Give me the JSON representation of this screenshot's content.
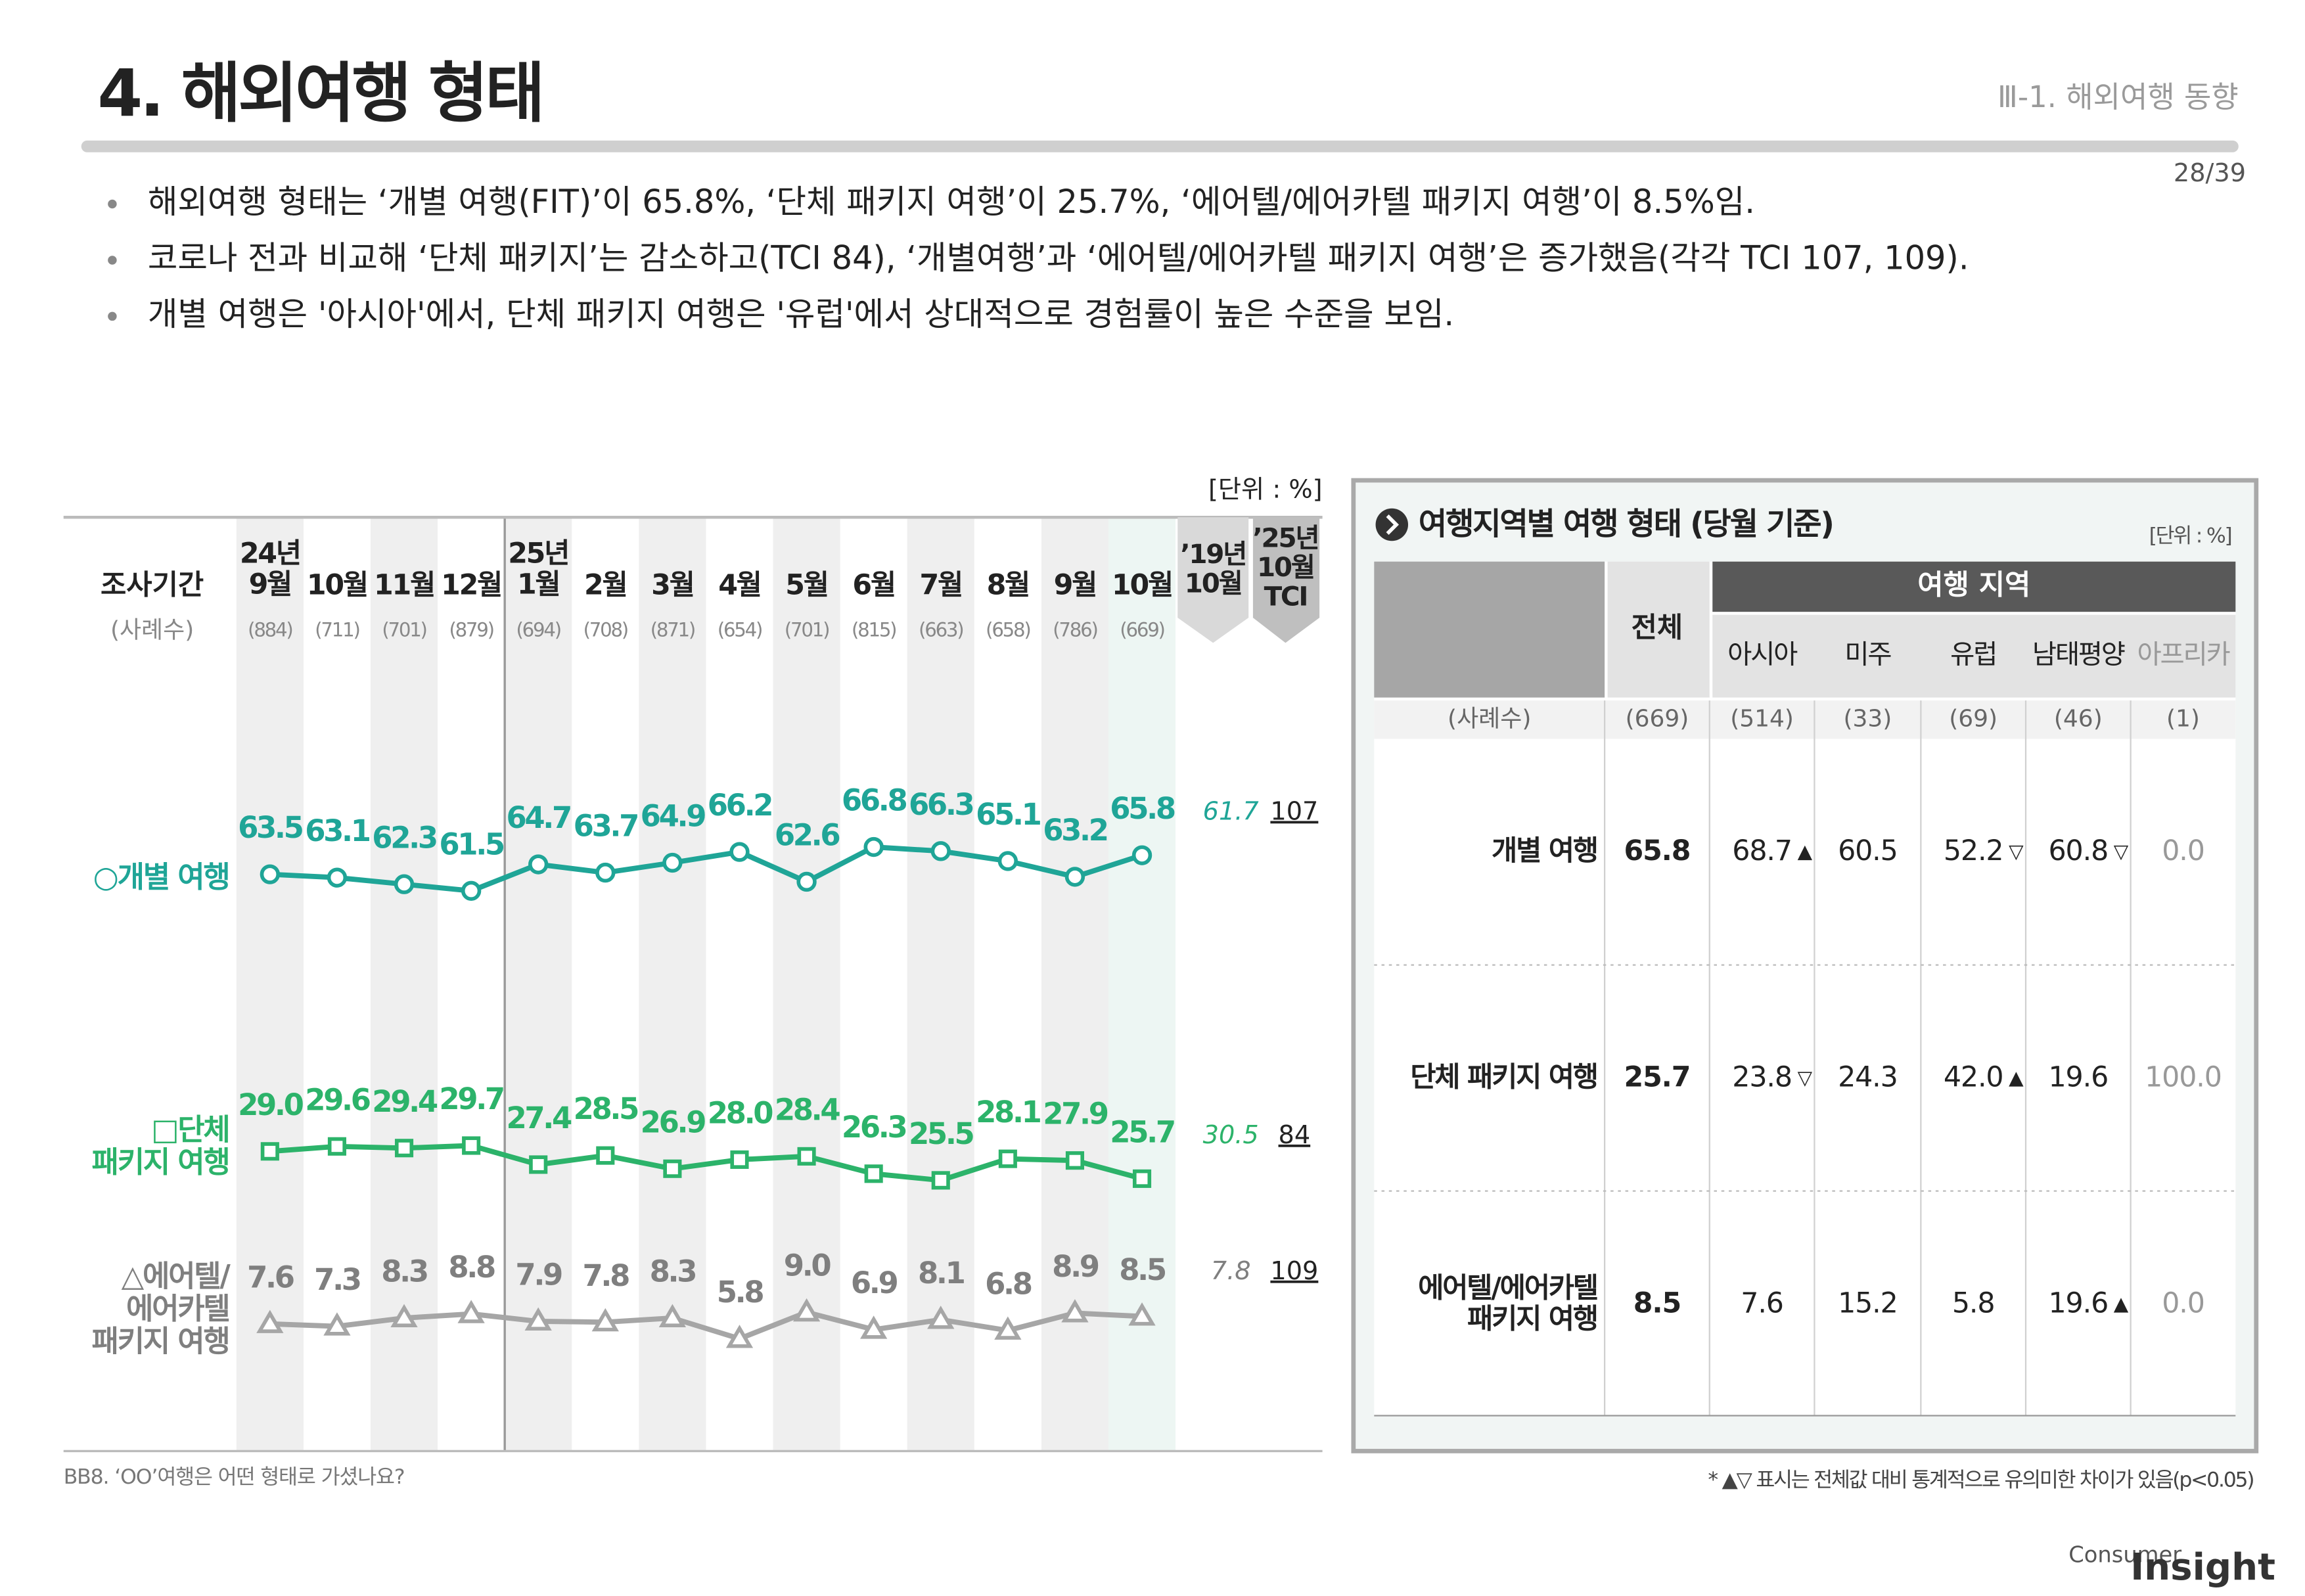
{
  "header": {
    "title": "4. 해외여행 형태",
    "section": "Ⅲ-1. 해외여행 동향",
    "page": "28/39"
  },
  "bullets": [
    "해외여행 형태는 ‘개별 여행(FIT)’이 65.8%, ‘단체 패키지 여행’이 25.7%, ‘에어텔/에어카텔 패키지 여행’이 8.5%임.",
    "코로나 전과 비교해 ‘단체 패키지’는 감소하고(TCI 84), ‘개별여행’과 ‘에어텔/에어카텔 패키지 여행’은 증가했음(각각 TCI 107, 109).",
    "개별 여행은 '아시아'에서, 단체 패키지 여행은 '유럽'에서 상대적으로 경험률이 높은 수준을 보임."
  ],
  "chart_data": {
    "type": "line",
    "unit": "[단위 : %]",
    "period_label": "조사기간",
    "sample_label": "(사례수)",
    "categories": [
      "24년\n9월",
      "10월",
      "11월",
      "12월",
      "25년\n1월",
      "2월",
      "3월",
      "4월",
      "5월",
      "6월",
      "7월",
      "8월",
      "9월",
      "10월"
    ],
    "sample_sizes": [
      "(884)",
      "(711)",
      "(701)",
      "(879)",
      "(694)",
      "(708)",
      "(871)",
      "(654)",
      "(701)",
      "(815)",
      "(663)",
      "(658)",
      "(786)",
      "(669)"
    ],
    "series": [
      {
        "name": "○개별 여행",
        "color": "#1fa597",
        "marker": "circle",
        "values": [
          63.5,
          63.1,
          62.3,
          61.5,
          64.7,
          63.7,
          64.9,
          66.2,
          62.6,
          66.8,
          66.3,
          65.1,
          63.2,
          65.8
        ]
      },
      {
        "name": "□단체\n패키지 여행",
        "color": "#2cb36a",
        "marker": "square",
        "values": [
          29.0,
          29.6,
          29.4,
          29.7,
          27.4,
          28.5,
          26.9,
          28.0,
          28.4,
          26.3,
          25.5,
          28.1,
          27.9,
          25.7
        ],
        "value_labels": [
          "29.0",
          "29.6",
          "29.4",
          "29.7",
          "27.4",
          "28.5",
          "26.9",
          "28.0",
          "28.4",
          "26.3",
          "25.5",
          "28.1",
          "27.9",
          "25.7"
        ]
      },
      {
        "name": "△에어텔/\n에어카텔\n패키지 여행",
        "color": "#a6a6a6",
        "label_color": "#7f7f7f",
        "marker": "triangle",
        "values": [
          7.6,
          7.3,
          8.3,
          8.8,
          7.9,
          7.8,
          8.3,
          5.8,
          9.0,
          6.9,
          8.1,
          6.8,
          8.9,
          8.5
        ],
        "value_labels": [
          "7.6",
          "7.3",
          "8.3",
          "8.8",
          "7.9",
          "7.8",
          "8.3",
          "5.8",
          "9.0",
          "6.9",
          "8.1",
          "6.8",
          "8.9",
          "8.5"
        ]
      }
    ],
    "comparison": {
      "header": "’19년\n10월",
      "values": [
        61.7,
        30.5,
        7.8
      ]
    },
    "tci": {
      "header": "’25년\n10월\nTCI",
      "values": [
        107,
        84,
        109
      ]
    },
    "source": "BB8. ‘OO’여행은 어떤 형태로 가셨나요?"
  },
  "table": {
    "title": "여행지역별 여행 형태 (당월 기준)",
    "unit": "[단위 : %]",
    "total_header": "전체",
    "group_header": "여행 지역",
    "regions": [
      "아시아",
      "미주",
      "유럽",
      "남태평양",
      "아프리카"
    ],
    "sample_label": "(사례수)",
    "sample_sizes": [
      "(669)",
      "(514)",
      "(33)",
      "(69)",
      "(46)",
      "(1)"
    ],
    "rows": [
      {
        "label": "개별 여행",
        "cells": [
          "65.8",
          "68.7",
          "60.5",
          "52.2",
          "60.8",
          "0.0"
        ],
        "marks": [
          null,
          "▲",
          null,
          "▽",
          "▽",
          null
        ]
      },
      {
        "label": "단체 패키지 여행",
        "cells": [
          "25.7",
          "23.8",
          "24.3",
          "42.0",
          "19.6",
          "100.0"
        ],
        "marks": [
          null,
          "▽",
          null,
          "▲",
          null,
          null
        ]
      },
      {
        "label": "에어텔/에어카텔\n패키지 여행",
        "cells": [
          "8.5",
          "7.6",
          "15.2",
          "5.8",
          "19.6",
          "0.0"
        ],
        "marks": [
          null,
          null,
          null,
          null,
          "▲",
          null
        ]
      }
    ],
    "note": "* ▲▽ 표시는 전체값 대비 통계적으로 유의미한 차이가 있음(p<0.05)"
  },
  "footer": {
    "brand_small": "Consumer",
    "brand_large": "Insight"
  }
}
